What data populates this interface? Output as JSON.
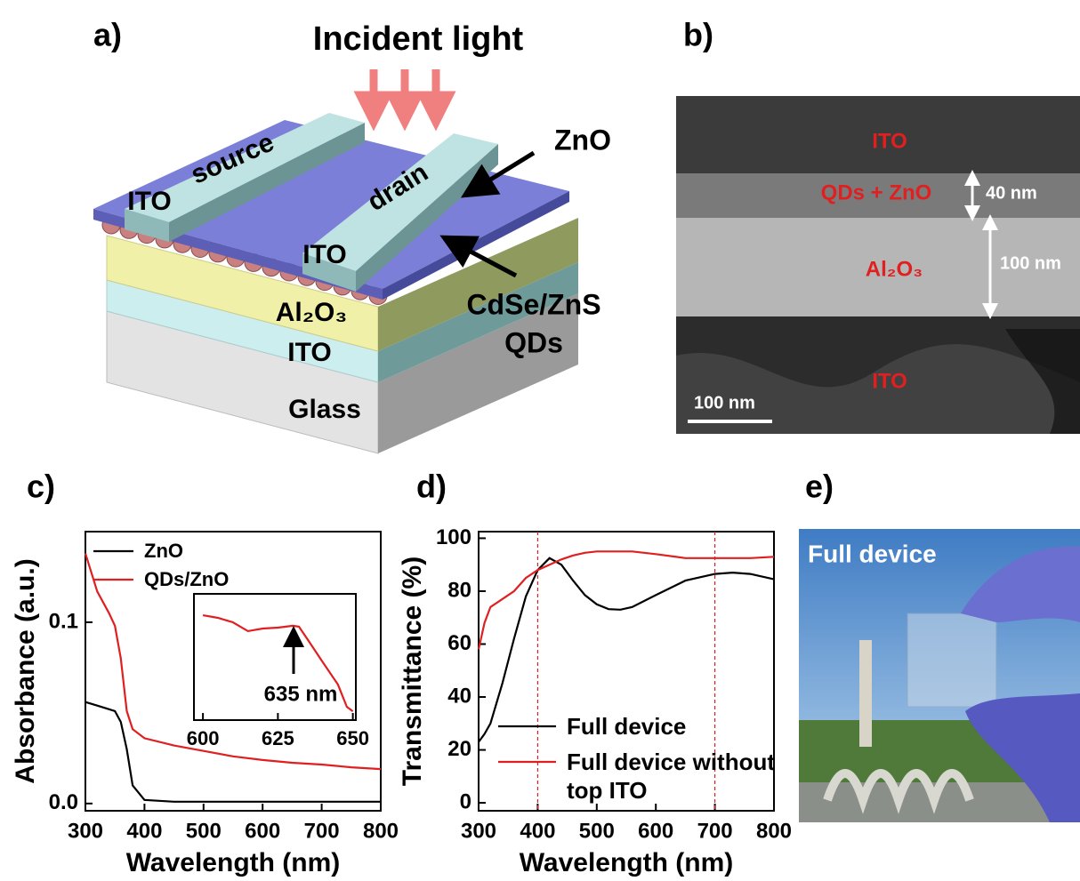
{
  "panel_a": {
    "label": "a)",
    "incident_light": "Incident light",
    "ito_source": "ITO",
    "source": "source",
    "drain": "drain",
    "ito_drain": "ITO",
    "zno": "ZnO",
    "qds_1": "CdSe/ZnS",
    "qds_2": "QDs",
    "al2o3": "Al₂O₃",
    "ito_bottom": "ITO",
    "glass": "Glass"
  },
  "panel_b": {
    "label": "b)",
    "ito_top": "ITO",
    "qds_zno": "QDs + ZnO",
    "thickness_1": "40 nm",
    "al2o3": "Al₂O₃",
    "thickness_2": "100 nm",
    "ito_bottom": "ITO",
    "scale_bar": "100 nm"
  },
  "chart_data": [
    {
      "type": "line",
      "panel_label": "c)",
      "xlabel": "Wavelength (nm)",
      "ylabel": "Absorbance (a.u.)",
      "x": [
        300,
        320,
        340,
        350,
        360,
        370,
        380,
        400,
        450,
        500,
        550,
        600,
        650,
        700,
        750,
        800
      ],
      "series": [
        {
          "name": "ZnO",
          "color": "#000000",
          "values": [
            0.056,
            0.054,
            0.052,
            0.051,
            0.045,
            0.03,
            0.01,
            0.002,
            0.001,
            0.001,
            0.001,
            0.001,
            0.001,
            0.001,
            0.001,
            0.001
          ]
        },
        {
          "name": "QDs/ZnO",
          "color": "#e02020",
          "values": [
            0.138,
            0.117,
            0.105,
            0.098,
            0.08,
            0.051,
            0.041,
            0.036,
            0.032,
            0.029,
            0.026,
            0.024,
            0.0225,
            0.0215,
            0.02,
            0.019
          ]
        }
      ],
      "xlim": [
        300,
        800
      ],
      "xticks": [
        300,
        400,
        500,
        600,
        700,
        800
      ],
      "ylim": [
        -0.004,
        0.15
      ],
      "yticks": [
        {
          "value": 0,
          "label": "0.0"
        },
        0.1
      ],
      "legend": "upper left"
    },
    {
      "type": "line",
      "annotation": "635 nm",
      "x": [
        600,
        605,
        610,
        615,
        620,
        625,
        630,
        632,
        635,
        640,
        645,
        648,
        650
      ],
      "series": [
        {
          "color": "#e02020",
          "values": [
            0.02432,
            0.02424,
            0.0241,
            0.02382,
            0.0239,
            0.02393,
            0.02399,
            0.02396,
            0.02354,
            0.02283,
            0.02213,
            0.02142,
            0.02128
          ]
        }
      ],
      "xlim": [
        597,
        651
      ],
      "xticks": [
        600,
        625,
        650
      ],
      "ylim": [
        0.021,
        0.025
      ]
    },
    {
      "type": "line",
      "panel_label": "d)",
      "xlabel": "Wavelength (nm)",
      "ylabel": "Transmittance (%)",
      "x": [
        300,
        310,
        320,
        340,
        360,
        380,
        400,
        420,
        440,
        460,
        480,
        500,
        520,
        540,
        560,
        600,
        650,
        700,
        730,
        760,
        800
      ],
      "series": [
        {
          "name": "Full device",
          "color": "#000000",
          "values": [
            23,
            26,
            30,
            45,
            62,
            78,
            88,
            92.5,
            90,
            84,
            78.5,
            75,
            73.2,
            73,
            74,
            78.5,
            84,
            86.5,
            87,
            86.5,
            84.5
          ]
        },
        {
          "name": "Full device without top ITO",
          "color": "#e02020",
          "values": [
            58,
            68,
            74,
            77,
            80,
            85,
            88,
            90,
            92,
            93.5,
            94.5,
            95,
            95,
            95,
            95,
            94,
            92.5,
            92.5,
            92.5,
            92.5,
            93
          ]
        }
      ],
      "xlim": [
        300,
        800
      ],
      "xticks": [
        300,
        400,
        500,
        600,
        700,
        800
      ],
      "ylim": [
        -3,
        102.5
      ],
      "yticks": [
        0,
        20,
        40,
        60,
        80,
        100
      ],
      "vlines": [
        400,
        700
      ],
      "vline_color": "#e02020",
      "legend": "lower left"
    }
  ],
  "panel_e": {
    "label": "e)",
    "caption": "Full device"
  }
}
